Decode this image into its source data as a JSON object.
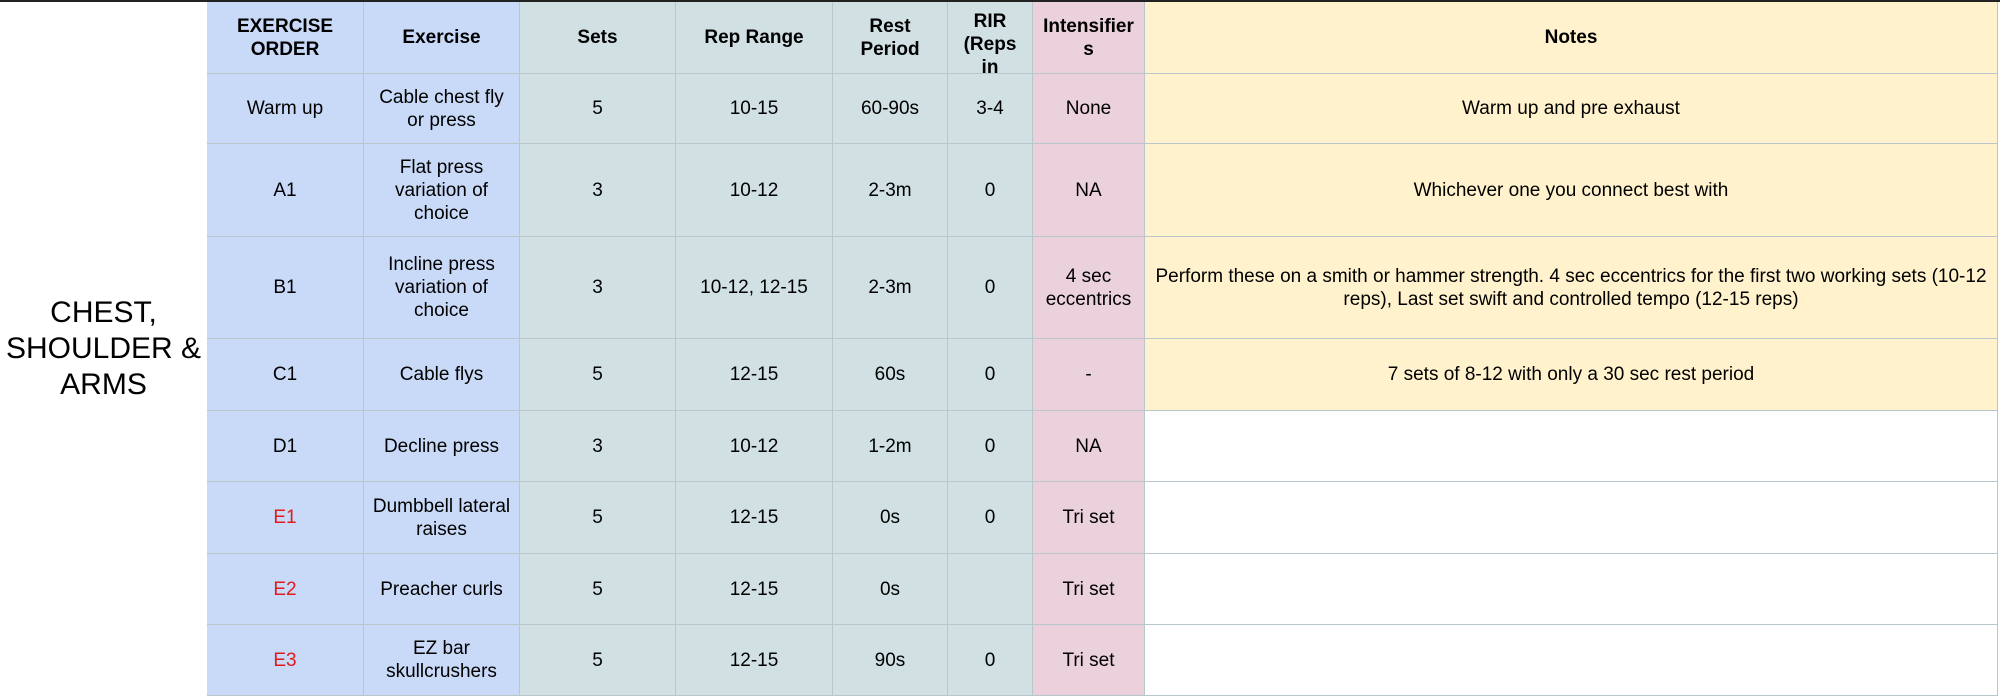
{
  "section_label": "CHEST, SHOULDER & ARMS",
  "headers": [
    "EXERCISE ORDER",
    "Exercise",
    "Sets",
    "Rep Range",
    "Rest Period",
    "RIR (Reps in",
    "Intensifier s",
    "Notes"
  ],
  "rows": [
    {
      "order": "Warm up",
      "exercise": "Cable chest fly or press",
      "sets": "5",
      "rep_range": "10-15",
      "rest": "60-90s",
      "rir": "3-4",
      "intensifier": "None",
      "notes": "Warm up and pre exhaust",
      "order_color": "#000000"
    },
    {
      "order": "A1",
      "exercise": "Flat press variation of choice",
      "sets": "3",
      "rep_range": "10-12",
      "rest": "2-3m",
      "rir": "0",
      "intensifier": "NA",
      "notes": "Whichever one you connect best with",
      "order_color": "#000000"
    },
    {
      "order": "B1",
      "exercise": "Incline press variation of choice",
      "sets": "3",
      "rep_range": "10-12, 12-15",
      "rest": "2-3m",
      "rir": "0",
      "intensifier": "4 sec eccentrics",
      "notes": "Perform these on a smith or hammer strength. 4 sec eccentrics for the first two working sets (10-12 reps), Last set swift and controlled tempo (12-15 reps)",
      "order_color": "#000000"
    },
    {
      "order": "C1",
      "exercise": "Cable flys",
      "sets": "5",
      "rep_range": "12-15",
      "rest": "60s",
      "rir": "0",
      "intensifier": "-",
      "notes": "7 sets of 8-12 with only a 30 sec rest period",
      "order_color": "#000000"
    },
    {
      "order": "D1",
      "exercise": "Decline press",
      "sets": "3",
      "rep_range": "10-12",
      "rest": "1-2m",
      "rir": "0",
      "intensifier": "NA",
      "notes": "",
      "order_color": "#000000"
    },
    {
      "order": "E1",
      "exercise": "Dumbbell lateral raises",
      "sets": "5",
      "rep_range": "12-15",
      "rest": "0s",
      "rir": "0",
      "intensifier": "Tri set",
      "notes": "",
      "order_color": "#e01b1b"
    },
    {
      "order": "E2",
      "exercise": "Preacher curls",
      "sets": "5",
      "rep_range": "12-15",
      "rest": "0s",
      "rir": "",
      "intensifier": "Tri set",
      "notes": "",
      "order_color": "#e01b1b"
    },
    {
      "order": "E3",
      "exercise": "EZ bar skullcrushers",
      "sets": "5",
      "rep_range": "12-15",
      "rest": "90s",
      "rir": "0",
      "intensifier": "Tri set",
      "notes": "",
      "order_color": "#e01b1b"
    }
  ],
  "colors": {
    "order_col": "#c9daf8",
    "params_col": "#d0e0e3",
    "intensifier_col": "#ead1dc",
    "notes_col": "#fff2cc",
    "accent_red": "#e01b1b"
  }
}
